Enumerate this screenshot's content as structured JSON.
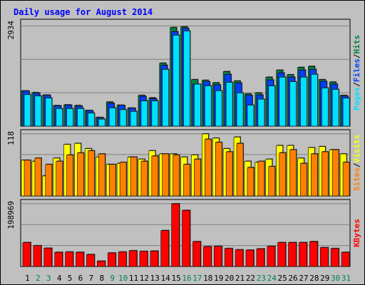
{
  "title": "Daily usage for August 2014",
  "colors": {
    "background": "#c0c0c0",
    "plot": "#c0c0c0",
    "title": "#0000ff",
    "hits": "#008040",
    "files": "#0040ff",
    "pages": "#00e0ff",
    "visits": "#ffff00",
    "sites": "#ff8000",
    "kbytes": "#ff0000",
    "weekend_day": "#00805c"
  },
  "chart_data": {
    "type": "bar",
    "title": "Daily usage for August 2014",
    "categories": [
      "1",
      "2",
      "3",
      "4",
      "5",
      "6",
      "7",
      "8",
      "9",
      "10",
      "11",
      "12",
      "13",
      "14",
      "15",
      "16",
      "17",
      "18",
      "19",
      "20",
      "21",
      "22",
      "23",
      "24",
      "25",
      "26",
      "27",
      "28",
      "29",
      "30",
      "31"
    ],
    "weekend_days": [
      "2",
      "3",
      "9",
      "10",
      "16",
      "17",
      "23",
      "24",
      "30",
      "31"
    ],
    "panels": [
      {
        "id": "requests",
        "ymax_label": "2934",
        "ylim": [
          0,
          2934
        ],
        "axis_labels": [
          {
            "text": "Pages",
            "color": "#00e0ff"
          },
          {
            "text": "/",
            "color": "#000000"
          },
          {
            "text": "Files",
            "color": "#0040ff"
          },
          {
            "text": "/",
            "color": "#000000"
          },
          {
            "text": "Hits",
            "color": "#008040"
          }
        ],
        "series": [
          {
            "name": "Hits",
            "color": "#008040",
            "values": [
              1010,
              960,
              890,
              590,
              610,
              590,
              450,
              250,
              690,
              600,
              520,
              880,
              810,
              1800,
              2820,
              2840,
              1330,
              1310,
              1240,
              1560,
              1290,
              920,
              950,
              1400,
              1600,
              1470,
              1680,
              1710,
              1330,
              1260,
              880
            ]
          },
          {
            "name": "Files",
            "color": "#0040ff",
            "values": [
              1000,
              940,
              880,
              580,
              600,
              570,
              440,
              240,
              650,
              590,
              510,
              850,
              780,
              1740,
              2700,
              2800,
              1200,
              1270,
              1180,
              1480,
              1230,
              880,
              890,
              1320,
              1520,
              1400,
              1600,
              1620,
              1280,
              1200,
              860
            ]
          },
          {
            "name": "Pages",
            "color": "#00e0ff",
            "values": [
              900,
              860,
              800,
              500,
              500,
              500,
              370,
              200,
              520,
              470,
              420,
              720,
              720,
              1620,
              2600,
              2720,
              1200,
              1150,
              1010,
              1250,
              950,
              600,
              770,
              1150,
              1400,
              1270,
              1400,
              1480,
              1090,
              1050,
              800
            ]
          }
        ]
      },
      {
        "id": "visits",
        "ymax_label": "118",
        "ylim": [
          0,
          118
        ],
        "axis_labels": [
          {
            "text": "Sites",
            "color": "#ff8000"
          },
          {
            "text": "/",
            "color": "#000000"
          },
          {
            "text": "Visits",
            "color": "#ffff00"
          }
        ],
        "series": [
          {
            "name": "Visits",
            "color": "#ffff00",
            "values": [
              68,
              66,
              38,
              72,
              98,
              100,
              90,
              74,
              60,
              62,
              74,
              70,
              86,
              80,
              80,
              74,
              78,
              118,
              110,
              90,
              112,
              66,
              64,
              70,
              96,
              96,
              72,
              92,
              94,
              88,
              80
            ]
          },
          {
            "name": "Sites",
            "color": "#ff8000",
            "values": [
              68,
              72,
              60,
              66,
              78,
              82,
              86,
              80,
              60,
              64,
              74,
              66,
              76,
              80,
              78,
              60,
              70,
              108,
              102,
              84,
              100,
              54,
              66,
              56,
              82,
              88,
              62,
              80,
              84,
              88,
              64
            ]
          }
        ]
      },
      {
        "id": "kbytes",
        "ymax_label": "198969",
        "ylim": [
          0,
          198969
        ],
        "axis_labels": [
          {
            "text": "KBytes",
            "color": "#ff0000"
          }
        ],
        "series": [
          {
            "name": "KBytes",
            "color": "#ff0000",
            "values": [
              76000,
              66000,
              58000,
              45000,
              46000,
              45000,
              38000,
              17000,
              43000,
              46000,
              50000,
              48000,
              49000,
              114000,
              198969,
              178000,
              79000,
              63000,
              64000,
              57000,
              53000,
              52000,
              56000,
              64000,
              76000,
              76000,
              76000,
              79000,
              60000,
              57000,
              45000
            ]
          }
        ]
      }
    ]
  }
}
